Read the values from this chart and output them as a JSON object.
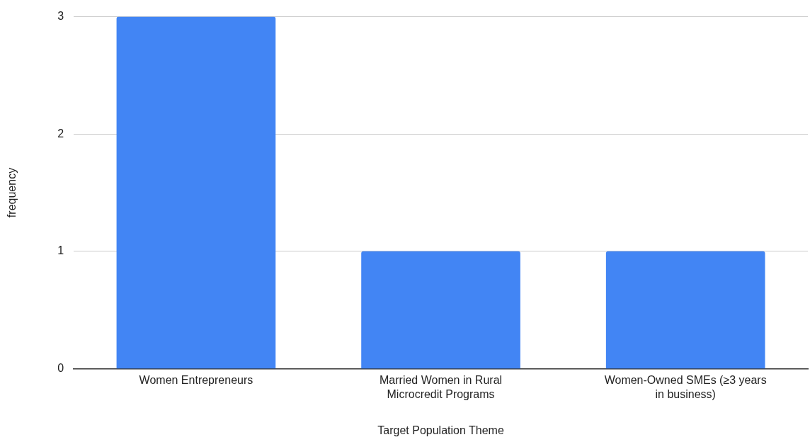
{
  "chart_data": {
    "type": "bar",
    "xlabel": "Target Population Theme",
    "ylabel": "frequency",
    "categories": [
      "Women Entrepreneurs",
      "Married Women in Rural Microcredit Programs",
      "Women-Owned SMEs (≥3 years in business)"
    ],
    "values": [
      3,
      1,
      1
    ],
    "color": "#4285f4",
    "ylim": [
      0,
      3
    ],
    "yticks": [
      0,
      1,
      2,
      3
    ],
    "grid": "y",
    "legend": false
  }
}
